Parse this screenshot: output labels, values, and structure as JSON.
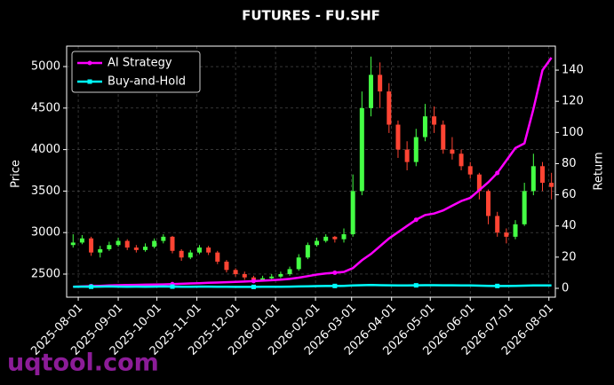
{
  "chart_data": {
    "type": "candlestick",
    "title": "FUTURES - FU.SHF",
    "ylabel": "Price",
    "y2label": "Return",
    "watermark": "uqtool.com",
    "x": [
      "2025-07-28",
      "2025-08-04",
      "2025-08-11",
      "2025-08-18",
      "2025-08-25",
      "2025-09-01",
      "2025-09-08",
      "2025-09-15",
      "2025-09-22",
      "2025-09-29",
      "2025-10-06",
      "2025-10-13",
      "2025-10-20",
      "2025-10-27",
      "2025-11-03",
      "2025-11-10",
      "2025-11-17",
      "2025-11-24",
      "2025-12-01",
      "2025-12-08",
      "2025-12-15",
      "2025-12-22",
      "2025-12-29",
      "2026-01-05",
      "2026-01-12",
      "2026-01-19",
      "2026-01-26",
      "2026-02-02",
      "2026-02-09",
      "2026-02-16",
      "2026-02-23",
      "2026-03-02",
      "2026-03-09",
      "2026-03-16",
      "2026-03-23",
      "2026-03-30",
      "2026-04-06",
      "2026-04-13",
      "2026-04-20",
      "2026-04-27",
      "2026-05-04",
      "2026-05-11",
      "2026-05-18",
      "2026-05-25",
      "2026-06-01",
      "2026-06-08",
      "2026-06-15",
      "2026-06-22",
      "2026-06-29",
      "2026-07-06",
      "2026-07-13",
      "2026-07-20",
      "2026-07-27",
      "2026-08-03"
    ],
    "open": [
      2850,
      2880,
      2930,
      2760,
      2800,
      2850,
      2900,
      2820,
      2790,
      2830,
      2900,
      2950,
      2780,
      2700,
      2760,
      2820,
      2760,
      2650,
      2550,
      2500,
      2460,
      2430,
      2450,
      2470,
      2500,
      2560,
      2700,
      2850,
      2900,
      2950,
      2920,
      2980,
      3500,
      4500,
      4900,
      4700,
      4300,
      4000,
      3850,
      4150,
      4400,
      4300,
      4000,
      3950,
      3800,
      3700,
      3500,
      3200,
      3000,
      2950,
      3100,
      3500,
      3800,
      3600
    ],
    "high": [
      2980,
      2970,
      2950,
      2840,
      2890,
      2940,
      2920,
      2850,
      2870,
      2930,
      2980,
      2960,
      2800,
      2790,
      2850,
      2840,
      2780,
      2670,
      2570,
      2530,
      2480,
      2480,
      2500,
      2530,
      2590,
      2740,
      2880,
      2940,
      2980,
      2960,
      3050,
      3700,
      4700,
      5120,
      5050,
      4800,
      4350,
      4100,
      4250,
      4550,
      4520,
      4350,
      4150,
      4000,
      3850,
      3720,
      3520,
      3250,
      3050,
      3150,
      3600,
      3950,
      3850,
      3720
    ],
    "low": [
      2820,
      2860,
      2720,
      2700,
      2780,
      2830,
      2790,
      2760,
      2770,
      2810,
      2870,
      2750,
      2660,
      2680,
      2740,
      2730,
      2620,
      2520,
      2470,
      2430,
      2400,
      2410,
      2430,
      2450,
      2480,
      2540,
      2680,
      2830,
      2880,
      2880,
      2880,
      2950,
      3450,
      4400,
      4500,
      4200,
      3900,
      3750,
      3800,
      4100,
      4200,
      3950,
      3880,
      3750,
      3650,
      3400,
      3100,
      2950,
      2870,
      2920,
      3080,
      3450,
      3500,
      3400
    ],
    "close": [
      2880,
      2930,
      2760,
      2800,
      2850,
      2900,
      2820,
      2790,
      2830,
      2900,
      2950,
      2780,
      2700,
      2760,
      2820,
      2760,
      2650,
      2550,
      2500,
      2460,
      2430,
      2450,
      2470,
      2500,
      2560,
      2700,
      2850,
      2900,
      2950,
      2920,
      2980,
      3500,
      4500,
      4900,
      4700,
      4300,
      4000,
      3850,
      4150,
      4400,
      4300,
      4000,
      3950,
      3800,
      3700,
      3500,
      3200,
      3000,
      2950,
      3100,
      3500,
      3800,
      3600,
      3550
    ],
    "up_color": "#44ff44",
    "down_color": "#ff4433",
    "series": [
      {
        "name": "AI Strategy",
        "color": "#ff00ff",
        "marker": "circle",
        "axis": "y2",
        "values": [
          1.0,
          1.2,
          1.4,
          1.6,
          1.8,
          2.0,
          2.1,
          2.2,
          2.3,
          2.4,
          2.5,
          2.7,
          2.9,
          3.1,
          3.3,
          3.5,
          3.7,
          3.9,
          4.1,
          4.3,
          4.6,
          4.9,
          5.2,
          5.5,
          6.0,
          6.8,
          7.8,
          8.8,
          9.5,
          10.0,
          10.5,
          13,
          18,
          22,
          27,
          32,
          36,
          40,
          44,
          47,
          48,
          50,
          53,
          56,
          58,
          63,
          68,
          74,
          82,
          90,
          93,
          115,
          140,
          148
        ]
      },
      {
        "name": "Buy-and-Hold",
        "color": "#00ffff",
        "marker": "square",
        "axis": "y2",
        "values": [
          1.0,
          1.1,
          1.0,
          1.1,
          1.2,
          1.1,
          1.0,
          1.1,
          1.0,
          1.1,
          1.2,
          1.1,
          1.0,
          1.0,
          1.1,
          1.1,
          1.0,
          1.0,
          0.9,
          0.9,
          0.9,
          1.0,
          1.0,
          1.0,
          1.1,
          1.2,
          1.3,
          1.4,
          1.5,
          1.5,
          1.6,
          1.8,
          2.0,
          2.1,
          2.0,
          1.9,
          1.8,
          1.8,
          1.9,
          2.0,
          2.0,
          1.9,
          1.9,
          1.8,
          1.8,
          1.7,
          1.6,
          1.5,
          1.5,
          1.6,
          1.7,
          1.8,
          1.8,
          1.8
        ]
      }
    ],
    "xlim": [
      "2025-07-23",
      "2026-08-06"
    ],
    "xticks": [
      "2025-08-01",
      "2025-09-01",
      "2025-10-01",
      "2025-11-01",
      "2025-12-01",
      "2026-01-01",
      "2026-02-01",
      "2026-03-01",
      "2026-04-01",
      "2026-05-01",
      "2026-06-01",
      "2026-07-01",
      "2026-08-01"
    ],
    "ylim": [
      2222,
      5246
    ],
    "yticks": [
      2500,
      3000,
      3500,
      4000,
      4500,
      5000
    ],
    "y2lim": [
      -5.7,
      155.4
    ],
    "y2ticks": [
      0,
      20,
      40,
      60,
      80,
      100,
      120,
      140
    ],
    "grid": true,
    "legend": "upper left"
  }
}
